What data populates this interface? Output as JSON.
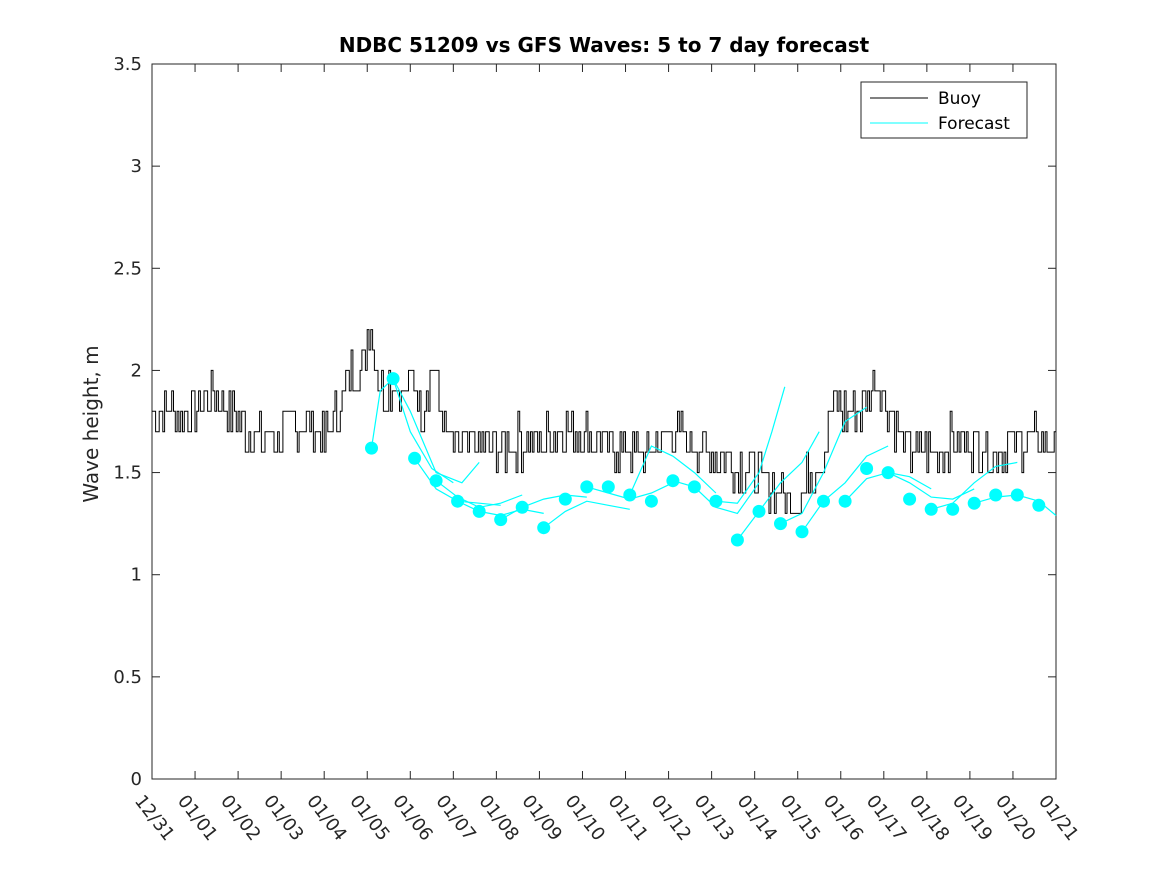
{
  "chart_data": {
    "type": "line",
    "title": "NDBC 51209 vs GFS Waves: 5 to 7 day forecast",
    "xlabel": "",
    "ylabel": "Wave height, m",
    "xlim": [
      0,
      21
    ],
    "ylim": [
      0,
      3.5
    ],
    "x_unit": "days since 12/31",
    "x_tick_values": [
      0,
      1,
      2,
      3,
      4,
      5,
      6,
      7,
      8,
      9,
      10,
      11,
      12,
      13,
      14,
      15,
      16,
      17,
      18,
      19,
      20,
      21
    ],
    "x_tick_labels": [
      "12/31",
      "01/01",
      "01/02",
      "01/03",
      "01/04",
      "01/05",
      "01/06",
      "01/07",
      "01/08",
      "01/09",
      "01/10",
      "01/11",
      "01/12",
      "01/13",
      "01/14",
      "01/15",
      "01/16",
      "01/17",
      "01/18",
      "01/19",
      "01/20",
      "01/21"
    ],
    "y_tick_values": [
      0,
      0.5,
      1,
      1.5,
      2,
      2.5,
      3,
      3.5
    ],
    "y_tick_labels": [
      "0",
      "0.5",
      "1",
      "1.5",
      "2",
      "2.5",
      "3",
      "3.5"
    ],
    "legend": {
      "placement": "top-right",
      "entries": [
        "Buoy",
        "Forecast"
      ]
    },
    "colors": {
      "buoy": "#000000",
      "forecast": "#00ffff",
      "axis": "#262626"
    },
    "buoy": {
      "name": "Buoy",
      "x": [
        0,
        0.5,
        1,
        1.3,
        1.5,
        2,
        2.5,
        3,
        3.5,
        4,
        4.3,
        4.6,
        4.9,
        5.05,
        5.3,
        5.6,
        5.8,
        6.0,
        6.3,
        6.5,
        6.7,
        7,
        7.5,
        8,
        8.5,
        9,
        9.5,
        10,
        10.5,
        11,
        11.5,
        12,
        12.5,
        13,
        13.5,
        14,
        14.3,
        14.6,
        14.9,
        15.2,
        15.6,
        15.8,
        16.0,
        16.5,
        16.8,
        17.0,
        17.3,
        17.6,
        18,
        18.5,
        19,
        19.5,
        20,
        20.5,
        21
      ],
      "y": [
        1.8,
        1.8,
        1.8,
        1.9,
        1.85,
        1.75,
        1.65,
        1.7,
        1.75,
        1.65,
        1.8,
        2.0,
        2.05,
        2.25,
        1.9,
        1.95,
        1.85,
        1.95,
        1.8,
        2.05,
        1.8,
        1.6,
        1.65,
        1.6,
        1.65,
        1.65,
        1.7,
        1.7,
        1.65,
        1.6,
        1.6,
        1.7,
        1.65,
        1.6,
        1.55,
        1.5,
        1.45,
        1.4,
        1.35,
        1.45,
        1.6,
        1.85,
        1.8,
        1.8,
        1.95,
        1.85,
        1.7,
        1.6,
        1.6,
        1.65,
        1.65,
        1.6,
        1.65,
        1.65,
        1.6
      ]
    },
    "forecast_points": {
      "name": "Forecast",
      "x": [
        5.1,
        5.6,
        6.1,
        6.6,
        7.1,
        7.6,
        8.1,
        8.6,
        9.1,
        9.6,
        10.1,
        10.6,
        11.1,
        11.6,
        12.1,
        12.6,
        13.1,
        13.6,
        14.1,
        14.6,
        15.1,
        15.6,
        16.1,
        16.6,
        17.1,
        17.6,
        18.1,
        18.6,
        19.1,
        19.6,
        20.1,
        20.6
      ],
      "y": [
        1.62,
        1.96,
        1.57,
        1.46,
        1.36,
        1.31,
        1.27,
        1.33,
        1.23,
        1.37,
        1.43,
        1.43,
        1.39,
        1.36,
        1.46,
        1.43,
        1.36,
        1.17,
        1.31,
        1.25,
        1.21,
        1.36,
        1.36,
        1.52,
        1.5,
        1.37,
        1.32,
        1.32,
        1.35,
        1.39,
        1.39,
        1.34
      ]
    },
    "forecast_series": [
      {
        "x": [
          5.1,
          5.3,
          5.6,
          6.0,
          6.5,
          7.0
        ],
        "y": [
          1.62,
          1.9,
          1.96,
          1.7,
          1.52,
          1.45
        ]
      },
      {
        "x": [
          5.6,
          6.0,
          6.6,
          7.2,
          7.6
        ],
        "y": [
          1.96,
          1.8,
          1.5,
          1.45,
          1.55
        ]
      },
      {
        "x": [
          6.1,
          6.6,
          7.1,
          7.6,
          8.1
        ],
        "y": [
          1.57,
          1.42,
          1.36,
          1.35,
          1.34
        ]
      },
      {
        "x": [
          6.6,
          7.1,
          7.6,
          8.1,
          8.6
        ],
        "y": [
          1.46,
          1.38,
          1.33,
          1.35,
          1.39
        ]
      },
      {
        "x": [
          7.1,
          7.6,
          8.1,
          8.6,
          9.1
        ],
        "y": [
          1.36,
          1.31,
          1.29,
          1.32,
          1.3
        ]
      },
      {
        "x": [
          8.1,
          8.6,
          9.1,
          9.6,
          10.1
        ],
        "y": [
          1.27,
          1.33,
          1.37,
          1.39,
          1.38
        ]
      },
      {
        "x": [
          9.1,
          9.6,
          10.1,
          10.6,
          11.1
        ],
        "y": [
          1.23,
          1.31,
          1.36,
          1.34,
          1.32
        ]
      },
      {
        "x": [
          10.1,
          10.6,
          11.1,
          11.6,
          12.1
        ],
        "y": [
          1.43,
          1.4,
          1.37,
          1.4,
          1.45
        ]
      },
      {
        "x": [
          11.1,
          11.6,
          12.1,
          12.6,
          13.1
        ],
        "y": [
          1.39,
          1.63,
          1.58,
          1.5,
          1.4
        ]
      },
      {
        "x": [
          12.1,
          12.6,
          13.1,
          13.6,
          14.1
        ],
        "y": [
          1.46,
          1.43,
          1.33,
          1.3,
          1.45
        ]
      },
      {
        "x": [
          13.1,
          13.6,
          14.1,
          14.4,
          14.7
        ],
        "y": [
          1.36,
          1.35,
          1.5,
          1.7,
          1.92
        ]
      },
      {
        "x": [
          13.6,
          14.1,
          14.6,
          15.1,
          15.5
        ],
        "y": [
          1.17,
          1.31,
          1.45,
          1.55,
          1.7
        ]
      },
      {
        "x": [
          14.6,
          15.1,
          15.6,
          16.1,
          16.6
        ],
        "y": [
          1.25,
          1.3,
          1.5,
          1.75,
          1.82
        ]
      },
      {
        "x": [
          15.1,
          15.6,
          16.1,
          16.6,
          17.1
        ],
        "y": [
          1.21,
          1.36,
          1.45,
          1.58,
          1.63
        ]
      },
      {
        "x": [
          16.1,
          16.6,
          17.1,
          17.6,
          18.1
        ],
        "y": [
          1.36,
          1.47,
          1.5,
          1.48,
          1.42
        ]
      },
      {
        "x": [
          17.1,
          17.6,
          18.1,
          18.6,
          19.1
        ],
        "y": [
          1.5,
          1.45,
          1.38,
          1.37,
          1.42
        ]
      },
      {
        "x": [
          18.1,
          18.6,
          19.1,
          19.6,
          20.1
        ],
        "y": [
          1.32,
          1.35,
          1.45,
          1.53,
          1.55
        ]
      },
      {
        "x": [
          19.1,
          19.6,
          20.1,
          20.6,
          21.0
        ],
        "y": [
          1.35,
          1.38,
          1.39,
          1.36,
          1.29
        ]
      }
    ]
  }
}
